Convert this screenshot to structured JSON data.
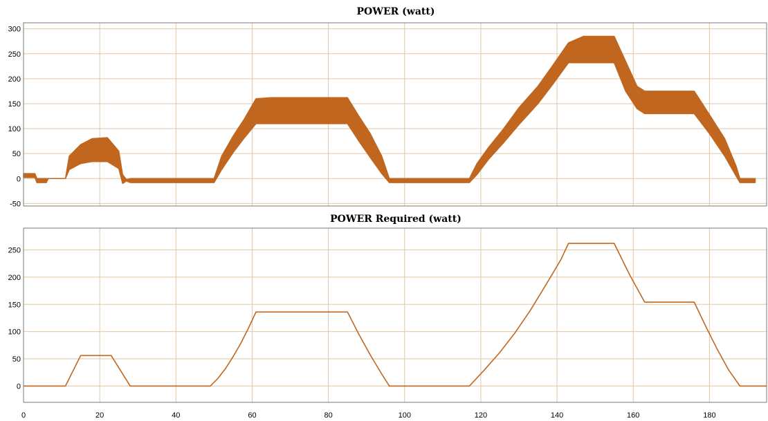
{
  "colors": {
    "series": "#c0661e",
    "grid": "#e2c6a6",
    "frame": "#7a7a7a",
    "background": "#ffffff"
  },
  "chart_data": [
    {
      "type": "line",
      "title": "POWER (watt)",
      "xlabel": "",
      "ylabel": "",
      "xlim": [
        0,
        195
      ],
      "ylim": [
        -55,
        312
      ],
      "xticks": [
        0,
        20,
        40,
        60,
        80,
        100,
        120,
        140,
        160,
        180
      ],
      "yticks": [
        -50,
        0,
        50,
        100,
        150,
        200,
        250,
        300
      ],
      "grid": true,
      "series": [
        {
          "style": "noisy-band",
          "x": [
            0,
            3,
            3.5,
            6,
            6.5,
            9,
            11,
            12,
            15,
            18,
            22,
            25,
            26,
            27,
            28,
            32,
            50,
            52,
            55,
            58,
            61,
            65,
            70,
            75,
            80,
            85,
            88,
            91,
            94,
            96,
            100,
            117,
            119,
            122,
            126,
            130,
            135,
            139,
            143,
            147,
            151,
            155,
            158,
            161,
            163,
            167,
            172,
            176,
            180,
            184,
            187,
            188,
            190,
            192
          ],
          "y_low": [
            2,
            2,
            -8,
            -8,
            0,
            0,
            0,
            18,
            30,
            34,
            34,
            20,
            -10,
            -5,
            -8,
            -8,
            -8,
            18,
            52,
            82,
            110,
            110,
            110,
            110,
            110,
            110,
            75,
            42,
            10,
            -8,
            -8,
            -8,
            8,
            38,
            72,
            108,
            150,
            190,
            232,
            232,
            232,
            232,
            175,
            140,
            130,
            130,
            130,
            130,
            90,
            45,
            5,
            -8,
            -8,
            -8
          ],
          "y_high": [
            10,
            10,
            0,
            0,
            0,
            0,
            0,
            45,
            68,
            80,
            82,
            55,
            8,
            -2,
            0,
            0,
            0,
            45,
            85,
            120,
            160,
            162,
            162,
            162,
            162,
            162,
            125,
            90,
            45,
            0,
            0,
            0,
            30,
            62,
            100,
            142,
            185,
            228,
            272,
            285,
            285,
            285,
            235,
            185,
            175,
            175,
            175,
            175,
            128,
            80,
            25,
            0,
            0,
            0
          ]
        }
      ]
    },
    {
      "type": "line",
      "title": "POWER Required (watt)",
      "xlabel": "",
      "ylabel": "",
      "xlim": [
        0,
        195
      ],
      "ylim": [
        -30,
        290
      ],
      "xticks": [
        0,
        20,
        40,
        60,
        80,
        100,
        120,
        140,
        160,
        180
      ],
      "yticks": [
        0,
        50,
        100,
        150,
        200,
        250
      ],
      "grid": true,
      "series": [
        {
          "x": [
            0,
            11,
            15,
            23,
            28,
            49,
            51,
            53,
            55,
            57,
            59,
            61,
            85,
            88,
            91,
            94,
            96,
            117,
            121,
            125,
            129,
            133,
            137,
            141,
            143,
            155,
            159,
            163,
            176,
            179,
            182,
            185,
            188,
            195
          ],
          "y": [
            0,
            0,
            56,
            56,
            0,
            0,
            14,
            32,
            54,
            78,
            106,
            136,
            136,
            95,
            57,
            22,
            0,
            0,
            30,
            62,
            98,
            139,
            185,
            232,
            262,
            262,
            205,
            154,
            154,
            110,
            68,
            30,
            0,
            0
          ]
        }
      ]
    }
  ]
}
